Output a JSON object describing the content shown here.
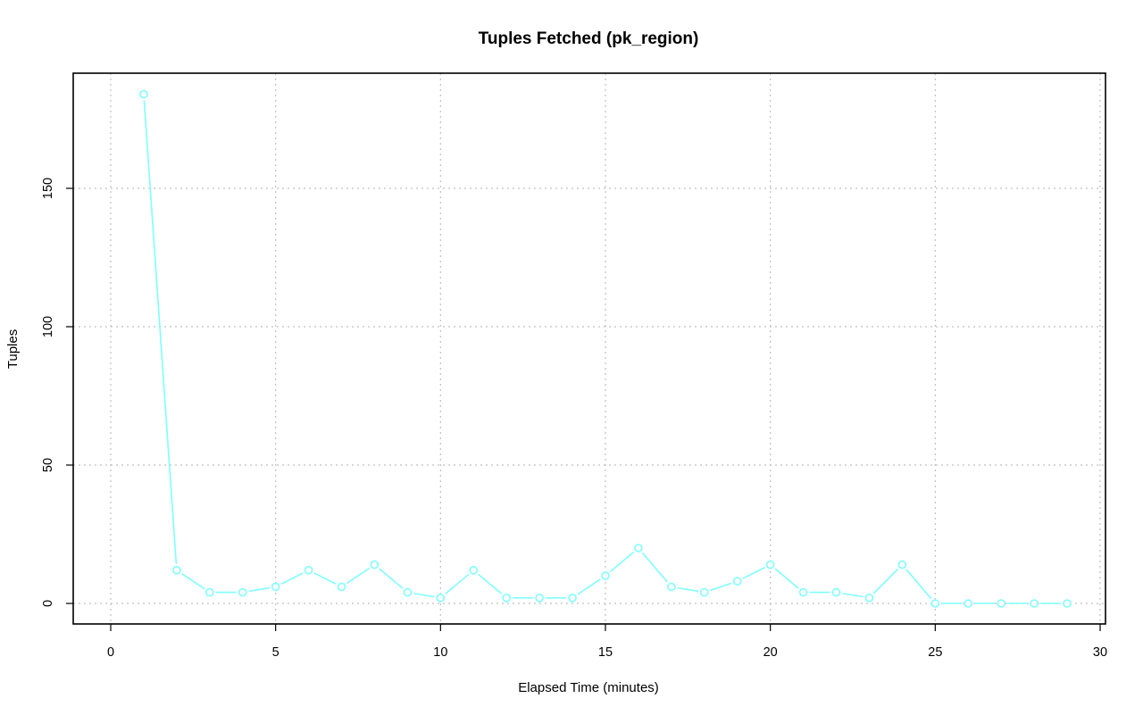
{
  "chart_data": {
    "type": "line",
    "title": "Tuples Fetched (pk_region)",
    "xlabel": "Elapsed Time (minutes)",
    "ylabel": "Tuples",
    "xlim": [
      0,
      30
    ],
    "ylim": [
      0,
      184
    ],
    "xticks": [
      0,
      5,
      10,
      15,
      20,
      25,
      30
    ],
    "yticks": [
      0,
      50,
      100,
      150
    ],
    "grid": true,
    "series": [
      {
        "color": "#7fffff",
        "x": [
          1,
          2,
          3,
          4,
          5,
          6,
          7,
          8,
          9,
          10,
          11,
          12,
          13,
          14,
          15,
          16,
          17,
          18,
          19,
          20,
          21,
          22,
          23,
          24,
          25,
          26,
          27,
          28,
          29
        ],
        "y": [
          184,
          12,
          4,
          4,
          6,
          12,
          6,
          14,
          4,
          2,
          12,
          2,
          2,
          2,
          10,
          20,
          6,
          4,
          8,
          14,
          4,
          4,
          2,
          14,
          0,
          0,
          0,
          0,
          0
        ]
      }
    ]
  }
}
